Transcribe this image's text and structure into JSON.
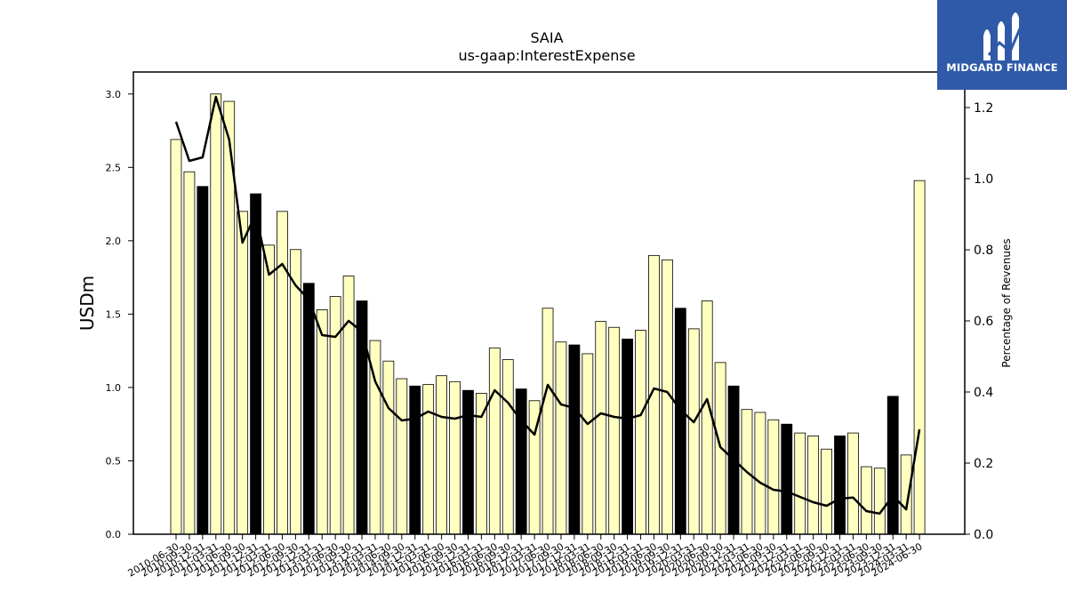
{
  "chart_data": {
    "type": "bar",
    "title": "SAIA",
    "subtitle": "us-gaap:InterestExpense",
    "ylabel": "USDm",
    "y2label": "Percentage of Revenues",
    "ylim": [
      0,
      3.15
    ],
    "y2lim": [
      0,
      1.3
    ],
    "yticks": [
      "0.0",
      "0.5",
      "1.0",
      "1.5",
      "2.0",
      "2.5",
      "3.0"
    ],
    "y2ticks": [
      "0.0",
      "0.2",
      "0.4",
      "0.6",
      "0.8",
      "1.0",
      "1.2"
    ],
    "bar_fill_normal": "#ffffc0",
    "bar_fill_q4": "#000000",
    "line_color": "#000000",
    "categories": [
      "2010-06-30",
      "2010-09-30",
      "2010-12-31",
      "2011-03-31",
      "2011-06-30",
      "2011-09-30",
      "2011-12-31",
      "2012-03-31",
      "2012-06-30",
      "2012-09-30",
      "2012-12-31",
      "2013-03-31",
      "2013-06-30",
      "2013-09-30",
      "2013-12-31",
      "2014-03-31",
      "2014-06-30",
      "2014-09-30",
      "2014-12-31",
      "2015-03-31",
      "2015-06-30",
      "2015-09-30",
      "2015-12-31",
      "2016-03-31",
      "2016-06-30",
      "2016-09-30",
      "2016-12-31",
      "2017-03-31",
      "2017-06-30",
      "2017-09-30",
      "2017-12-31",
      "2018-03-31",
      "2018-06-30",
      "2018-09-30",
      "2018-12-31",
      "2019-03-31",
      "2019-06-30",
      "2019-09-30",
      "2019-12-31",
      "2020-03-31",
      "2020-06-30",
      "2020-09-30",
      "2020-12-31",
      "2021-03-31",
      "2021-06-30",
      "2021-09-30",
      "2021-12-31",
      "2022-03-31",
      "2022-06-30",
      "2022-09-30",
      "2022-12-31",
      "2023-03-31",
      "2023-06-30",
      "2023-09-30",
      "2023-12-31",
      "2024-03-31",
      "2024-06-30"
    ],
    "series": [
      {
        "kind": "bar",
        "axis": "left",
        "values": [
          2.69,
          2.47,
          2.37,
          3.0,
          2.95,
          2.2,
          2.32,
          1.97,
          2.2,
          1.94,
          1.71,
          1.53,
          1.62,
          1.76,
          1.59,
          1.32,
          1.18,
          1.06,
          1.01,
          1.02,
          1.08,
          1.04,
          0.98,
          0.96,
          1.27,
          1.19,
          0.99,
          0.91,
          1.54,
          1.31,
          1.29,
          1.23,
          1.45,
          1.41,
          1.33,
          1.39,
          1.9,
          1.87,
          1.54,
          1.4,
          1.59,
          1.17,
          1.01,
          0.85,
          0.83,
          0.78,
          0.75,
          0.69,
          0.67,
          0.58,
          0.67,
          0.69,
          0.46,
          0.45,
          0.94,
          0.54,
          2.41
        ]
      },
      {
        "kind": "line",
        "axis": "right",
        "values": [
          1.16,
          1.05,
          1.06,
          1.23,
          1.11,
          0.82,
          0.9,
          0.73,
          0.76,
          0.7,
          0.66,
          0.56,
          0.555,
          0.6,
          0.57,
          0.43,
          0.355,
          0.32,
          0.325,
          0.345,
          0.33,
          0.325,
          0.335,
          0.33,
          0.405,
          0.37,
          0.32,
          0.28,
          0.42,
          0.365,
          0.355,
          0.31,
          0.34,
          0.33,
          0.325,
          0.335,
          0.41,
          0.4,
          0.35,
          0.315,
          0.38,
          0.245,
          0.21,
          0.175,
          0.145,
          0.125,
          0.12,
          0.105,
          0.09,
          0.08,
          0.1,
          0.103,
          0.065,
          0.058,
          0.108,
          0.07,
          0.295
        ]
      }
    ],
    "legend": "none",
    "grid": false
  },
  "logo": {
    "text": "MIDGARD FINANCE",
    "background": "#2f5aa8"
  }
}
